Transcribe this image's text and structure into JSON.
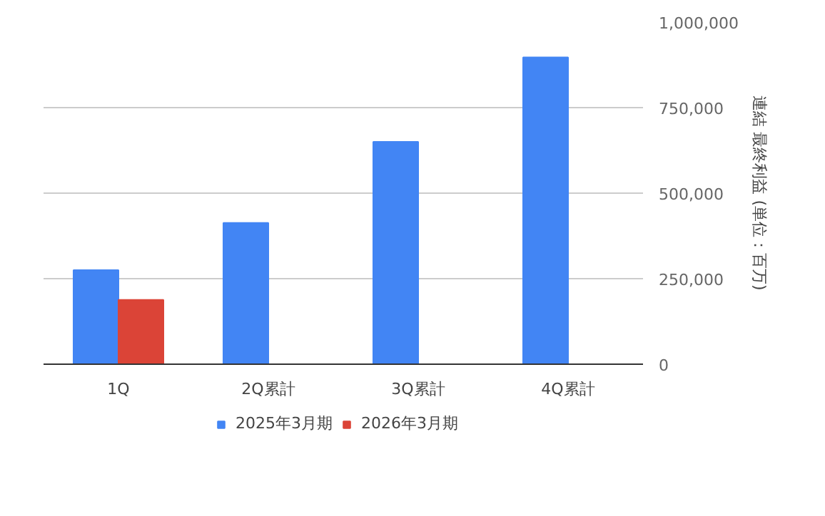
{
  "chart_data": {
    "type": "bar",
    "categories": [
      "1Q",
      "2Q累計",
      "3Q累計",
      "4Q累計"
    ],
    "series": [
      {
        "name": "2025年3月期",
        "color": "#4285f4",
        "values": [
          275000,
          413000,
          650000,
          897000
        ]
      },
      {
        "name": "2026年3月期",
        "color": "#db4437",
        "values": [
          188000,
          null,
          null,
          null
        ]
      }
    ],
    "ylabel": "連結 最終利益 (単位：百万)",
    "ylim": [
      0,
      1000000
    ],
    "yticks": [
      {
        "value": 0,
        "label": "0"
      },
      {
        "value": 250000,
        "label": "250,000"
      },
      {
        "value": 500000,
        "label": "500,000"
      },
      {
        "value": 750000,
        "label": "750,000"
      },
      {
        "value": 1000000,
        "label": "1,000,000"
      }
    ],
    "grid": "y",
    "legend": "bottom"
  }
}
